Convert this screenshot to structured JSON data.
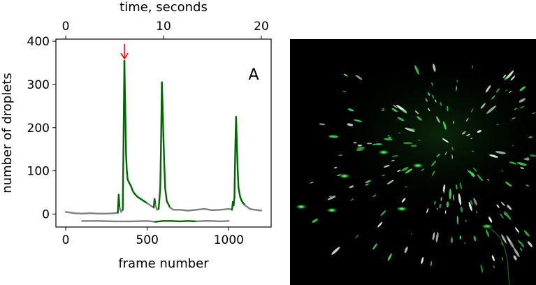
{
  "chart_data": {
    "type": "line",
    "panel_label": "A",
    "xlabel": "frame number",
    "ylabel": "number of droplets",
    "top_xlabel": "time, seconds",
    "xlim": [
      -60,
      1260
    ],
    "ylim": [
      -30,
      405
    ],
    "x_ticks": [
      0,
      500,
      1000
    ],
    "y_ticks": [
      0,
      100,
      200,
      300,
      400
    ],
    "top_x_ticks": [
      0,
      10,
      20
    ],
    "frames_per_second": 60,
    "arrow_at_x": 360,
    "colors": {
      "high": "#006400",
      "low": "#808080",
      "arrow": "#ff0000"
    },
    "series": [
      {
        "points": [
          [
            0,
            5
          ],
          [
            50,
            2
          ],
          [
            100,
            1
          ],
          [
            150,
            2
          ],
          [
            200,
            1
          ],
          [
            250,
            1
          ],
          [
            300,
            2
          ],
          [
            320,
            3
          ],
          [
            325,
            45
          ],
          [
            330,
            15
          ],
          [
            340,
            5
          ],
          [
            350,
            10
          ],
          [
            355,
            180
          ],
          [
            360,
            355
          ],
          [
            365,
            250
          ],
          [
            370,
            140
          ],
          [
            375,
            100
          ],
          [
            380,
            80
          ],
          [
            390,
            72
          ],
          [
            400,
            65
          ],
          [
            410,
            55
          ],
          [
            420,
            48
          ],
          [
            440,
            40
          ],
          [
            460,
            35
          ],
          [
            480,
            30
          ],
          [
            500,
            25
          ],
          [
            520,
            20
          ],
          [
            540,
            15
          ],
          [
            545,
            35
          ],
          [
            550,
            22
          ],
          [
            560,
            10
          ],
          [
            570,
            12
          ],
          [
            580,
            60
          ],
          [
            585,
            170
          ],
          [
            590,
            305
          ],
          [
            595,
            240
          ],
          [
            600,
            170
          ],
          [
            605,
            110
          ],
          [
            610,
            60
          ],
          [
            620,
            30
          ],
          [
            640,
            15
          ],
          [
            660,
            10
          ],
          [
            700,
            10
          ],
          [
            750,
            8
          ],
          [
            800,
            10
          ],
          [
            850,
            12
          ],
          [
            900,
            9
          ],
          [
            950,
            10
          ],
          [
            1000,
            12
          ],
          [
            1020,
            10
          ],
          [
            1025,
            28
          ],
          [
            1030,
            20
          ],
          [
            1035,
            40
          ],
          [
            1040,
            150
          ],
          [
            1045,
            225
          ],
          [
            1050,
            160
          ],
          [
            1055,
            100
          ],
          [
            1060,
            60
          ],
          [
            1070,
            40
          ],
          [
            1080,
            30
          ],
          [
            1100,
            20
          ],
          [
            1130,
            12
          ],
          [
            1160,
            10
          ],
          [
            1200,
            8
          ]
        ]
      },
      {
        "points": [
          [
            100,
            -16
          ],
          [
            200,
            -16
          ],
          [
            300,
            -17
          ],
          [
            400,
            -17
          ],
          [
            500,
            -16
          ],
          [
            550,
            -18
          ],
          [
            600,
            -16
          ],
          [
            650,
            -16
          ],
          [
            700,
            -17
          ],
          [
            750,
            -16
          ],
          [
            800,
            -17
          ],
          [
            850,
            -16
          ],
          [
            900,
            -16
          ],
          [
            950,
            -17
          ],
          [
            1000,
            -16
          ]
        ]
      }
    ]
  }
}
